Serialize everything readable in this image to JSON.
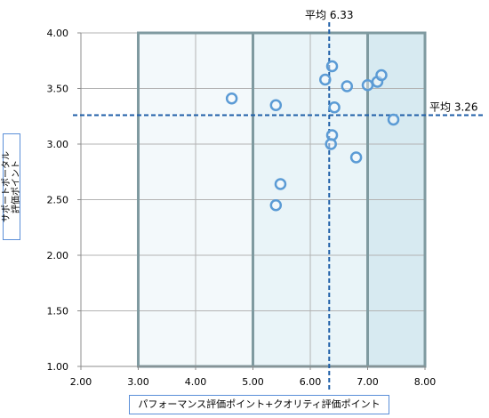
{
  "chart_data": {
    "type": "scatter",
    "xlim": [
      2.0,
      8.0
    ],
    "ylim": [
      1.0,
      4.0
    ],
    "x_ticks": [
      "2.00",
      "3.00",
      "4.00",
      "5.00",
      "6.00",
      "7.00",
      "8.00"
    ],
    "y_ticks": [
      "1.00",
      "1.50",
      "2.00",
      "2.50",
      "3.00",
      "3.50",
      "4.00"
    ],
    "xlabel": "パフォーマンス評価ポイント+クオリティ評価ポイント",
    "ylabel": "サポートポータル\n評価ポイント",
    "grid": true,
    "zones": [
      {
        "x_from": 3.0,
        "x_to": 5.0,
        "fill": "#f3f9fb"
      },
      {
        "x_from": 5.0,
        "x_to": 7.0,
        "fill": "#e9f4f8"
      },
      {
        "x_from": 7.0,
        "x_to": 8.0,
        "fill": "#d7eaf1"
      }
    ],
    "reference_lines": [
      {
        "axis": "x",
        "value": 6.33,
        "label": "平均 6.33"
      },
      {
        "axis": "y",
        "value": 3.26,
        "label": "平均 3.26"
      }
    ],
    "points": [
      {
        "x": 4.63,
        "y": 3.41
      },
      {
        "x": 5.4,
        "y": 3.35
      },
      {
        "x": 6.26,
        "y": 3.58
      },
      {
        "x": 6.38,
        "y": 3.7
      },
      {
        "x": 6.64,
        "y": 3.52
      },
      {
        "x": 6.42,
        "y": 3.33
      },
      {
        "x": 7.0,
        "y": 3.53
      },
      {
        "x": 7.17,
        "y": 3.56
      },
      {
        "x": 7.24,
        "y": 3.62
      },
      {
        "x": 7.45,
        "y": 3.22
      },
      {
        "x": 6.38,
        "y": 3.08
      },
      {
        "x": 6.36,
        "y": 3.0
      },
      {
        "x": 6.8,
        "y": 2.88
      },
      {
        "x": 5.48,
        "y": 2.64
      },
      {
        "x": 5.4,
        "y": 2.45
      }
    ],
    "colors": {
      "marker": "#5b9bd5",
      "reference_line": "#1f5fa8",
      "grid": "#b3b3b3",
      "zone_border": "#7f9aa0",
      "axis": "#8c8c8c"
    }
  }
}
